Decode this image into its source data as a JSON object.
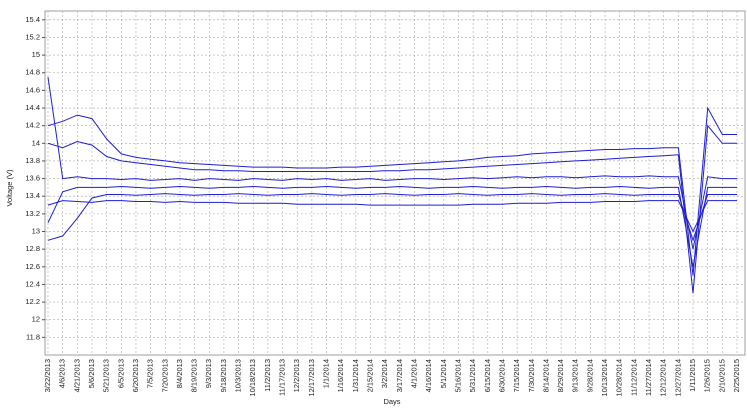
{
  "chart_data": {
    "type": "line",
    "y_label": "Voltage (V)",
    "x_label": "Days",
    "categories": [
      "3/22/2013",
      "4/6/2013",
      "4/21/2013",
      "5/6/2013",
      "5/21/2013",
      "6/5/2013",
      "6/20/2013",
      "7/5/2013",
      "7/20/2013",
      "8/4/2013",
      "8/19/2013",
      "9/3/2013",
      "9/18/2013",
      "10/3/2013",
      "10/18/2013",
      "11/2/2013",
      "11/17/2013",
      "12/2/2013",
      "12/17/2013",
      "1/1/2014",
      "1/16/2014",
      "1/31/2014",
      "2/15/2014",
      "3/2/2014",
      "3/17/2014",
      "4/1/2014",
      "4/16/2014",
      "5/1/2014",
      "5/16/2014",
      "5/31/2014",
      "6/15/2014",
      "6/30/2014",
      "7/15/2014",
      "7/30/2014",
      "8/14/2014",
      "8/29/2014",
      "9/13/2014",
      "9/28/2014",
      "10/13/2014",
      "10/28/2014",
      "11/12/2014",
      "11/27/2014",
      "12/12/2014",
      "12/27/2014",
      "1/11/2015",
      "1/26/2015",
      "2/10/2015",
      "2/25/2015"
    ],
    "series": [
      {
        "color": "#1f1fd1",
        "values": [
          14.2,
          14.25,
          14.32,
          14.28,
          14.05,
          13.88,
          13.84,
          13.82,
          13.8,
          13.78,
          13.77,
          13.76,
          13.75,
          13.74,
          13.73,
          13.73,
          13.73,
          13.72,
          13.72,
          13.72,
          13.73,
          13.73,
          13.74,
          13.75,
          13.76,
          13.77,
          13.78,
          13.79,
          13.8,
          13.82,
          13.84,
          13.85,
          13.86,
          13.88,
          13.89,
          13.9,
          13.91,
          13.92,
          13.93,
          13.93,
          13.94,
          13.94,
          13.95,
          13.95,
          12.5,
          14.4,
          14.1,
          14.1
        ]
      },
      {
        "color": "#1f1fd1",
        "values": [
          14.0,
          13.95,
          14.02,
          13.98,
          13.85,
          13.8,
          13.78,
          13.76,
          13.74,
          13.72,
          13.7,
          13.7,
          13.69,
          13.69,
          13.68,
          13.68,
          13.68,
          13.68,
          13.68,
          13.68,
          13.68,
          13.68,
          13.68,
          13.69,
          13.69,
          13.7,
          13.7,
          13.71,
          13.72,
          13.73,
          13.74,
          13.75,
          13.76,
          13.77,
          13.78,
          13.79,
          13.8,
          13.81,
          13.82,
          13.83,
          13.84,
          13.85,
          13.86,
          13.87,
          12.3,
          14.2,
          14.0,
          14.0
        ]
      },
      {
        "color": "#1f1fd1",
        "values": [
          14.75,
          13.6,
          13.62,
          13.6,
          13.6,
          13.59,
          13.6,
          13.58,
          13.59,
          13.6,
          13.58,
          13.6,
          13.59,
          13.58,
          13.6,
          13.59,
          13.58,
          13.6,
          13.59,
          13.6,
          13.58,
          13.59,
          13.6,
          13.58,
          13.59,
          13.6,
          13.6,
          13.59,
          13.6,
          13.61,
          13.6,
          13.61,
          13.62,
          13.61,
          13.62,
          13.62,
          13.61,
          13.62,
          13.63,
          13.62,
          13.62,
          13.63,
          13.62,
          13.62,
          12.8,
          13.62,
          13.6,
          13.6
        ]
      },
      {
        "color": "#1f1fd1",
        "values": [
          13.1,
          13.45,
          13.5,
          13.5,
          13.5,
          13.51,
          13.5,
          13.49,
          13.5,
          13.51,
          13.5,
          13.49,
          13.5,
          13.5,
          13.51,
          13.5,
          13.49,
          13.5,
          13.5,
          13.51,
          13.5,
          13.49,
          13.5,
          13.5,
          13.51,
          13.5,
          13.49,
          13.5,
          13.5,
          13.51,
          13.5,
          13.49,
          13.5,
          13.5,
          13.51,
          13.5,
          13.49,
          13.5,
          13.5,
          13.51,
          13.5,
          13.49,
          13.5,
          13.5,
          12.6,
          13.5,
          13.5,
          13.5
        ]
      },
      {
        "color": "#1f1fd1",
        "values": [
          12.9,
          12.95,
          13.15,
          13.38,
          13.42,
          13.42,
          13.41,
          13.42,
          13.43,
          13.42,
          13.41,
          13.42,
          13.42,
          13.43,
          13.42,
          13.41,
          13.42,
          13.42,
          13.43,
          13.42,
          13.41,
          13.42,
          13.42,
          13.43,
          13.42,
          13.41,
          13.42,
          13.42,
          13.43,
          13.42,
          13.41,
          13.42,
          13.42,
          13.43,
          13.42,
          13.41,
          13.42,
          13.42,
          13.43,
          13.42,
          13.41,
          13.42,
          13.42,
          13.42,
          12.9,
          13.42,
          13.42,
          13.42
        ]
      },
      {
        "color": "#1f1fd1",
        "values": [
          13.3,
          13.35,
          13.34,
          13.33,
          13.35,
          13.35,
          13.34,
          13.34,
          13.33,
          13.34,
          13.33,
          13.33,
          13.33,
          13.32,
          13.32,
          13.32,
          13.32,
          13.31,
          13.31,
          13.31,
          13.31,
          13.31,
          13.3,
          13.3,
          13.3,
          13.3,
          13.3,
          13.3,
          13.3,
          13.31,
          13.31,
          13.31,
          13.32,
          13.32,
          13.32,
          13.33,
          13.33,
          13.33,
          13.34,
          13.34,
          13.34,
          13.35,
          13.35,
          13.35,
          13.0,
          13.35,
          13.35,
          13.35
        ]
      }
    ],
    "ylim": [
      11.6,
      15.5
    ],
    "yticks": [
      11.8,
      12,
      12.2,
      12.4,
      12.6,
      12.8,
      13,
      13.2,
      13.4,
      13.6,
      13.8,
      14,
      14.2,
      14.4,
      14.6,
      14.8,
      15,
      15.2,
      15.4
    ],
    "grid": true
  }
}
